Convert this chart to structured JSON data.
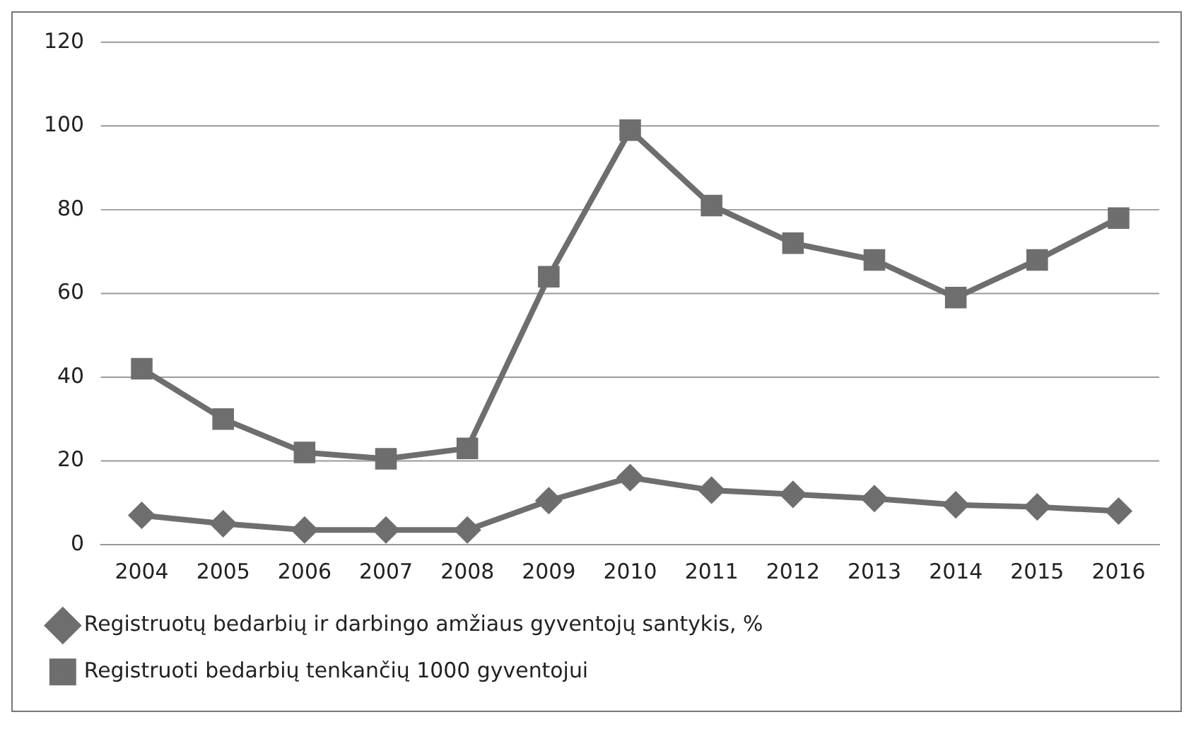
{
  "chart_data": {
    "type": "line",
    "categories": [
      "2004",
      "2005",
      "2006",
      "2007",
      "2008",
      "2009",
      "2010",
      "2011",
      "2012",
      "2013",
      "2014",
      "2015",
      "2016"
    ],
    "series": [
      {
        "name": "Registruotų bedarbių ir darbingo amžiaus gyventojų santykis, %",
        "color": "#6e6e6e",
        "marker": "diamond",
        "values": [
          7,
          5,
          3.5,
          3.5,
          3.5,
          10.5,
          16,
          13,
          12,
          11,
          9.5,
          9,
          8
        ]
      },
      {
        "name": "Registruoti bedarbių tenkančių 1000 gyventojui",
        "color": "#6e6e6e",
        "marker": "square",
        "values": [
          42,
          30,
          22,
          20.5,
          23,
          64,
          99,
          81,
          72,
          68,
          59,
          68,
          78
        ]
      }
    ],
    "ylim": [
      0,
      120
    ],
    "yticks": [
      0,
      20,
      40,
      60,
      80,
      100,
      120
    ],
    "grid": "y",
    "legend": "bottom",
    "line_style": "solid"
  }
}
